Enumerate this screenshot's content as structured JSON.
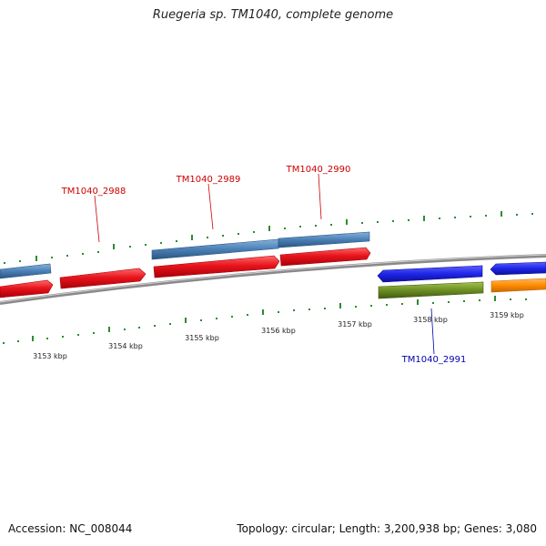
{
  "title": "Ruegeria sp. TM1040, complete genome",
  "footer": {
    "accession": "Accession: NC_008044",
    "summary": "Topology: circular; Length: 3,200,938 bp; Genes: 3,080"
  },
  "colors": {
    "backbone": "#8a8a8a",
    "tick": "#2e8b2e",
    "forward_red": "#e8141c",
    "forward_blue": "#4a7fb5",
    "reverse_blue": "#1f25e6",
    "reverse_green": "#6b8e23",
    "reverse_orange": "#ff8c00",
    "label_red": "#cc0000",
    "label_blue": "#0000aa"
  },
  "scale_labels": [
    "3153 kbp",
    "3154 kbp",
    "3155 kbp",
    "3156 kbp",
    "3157 kbp",
    "3158 kbp",
    "3159 kbp"
  ],
  "gene_labels": [
    "TM1040_2988",
    "TM1040_2989",
    "TM1040_2990",
    "TM1040_2991"
  ]
}
